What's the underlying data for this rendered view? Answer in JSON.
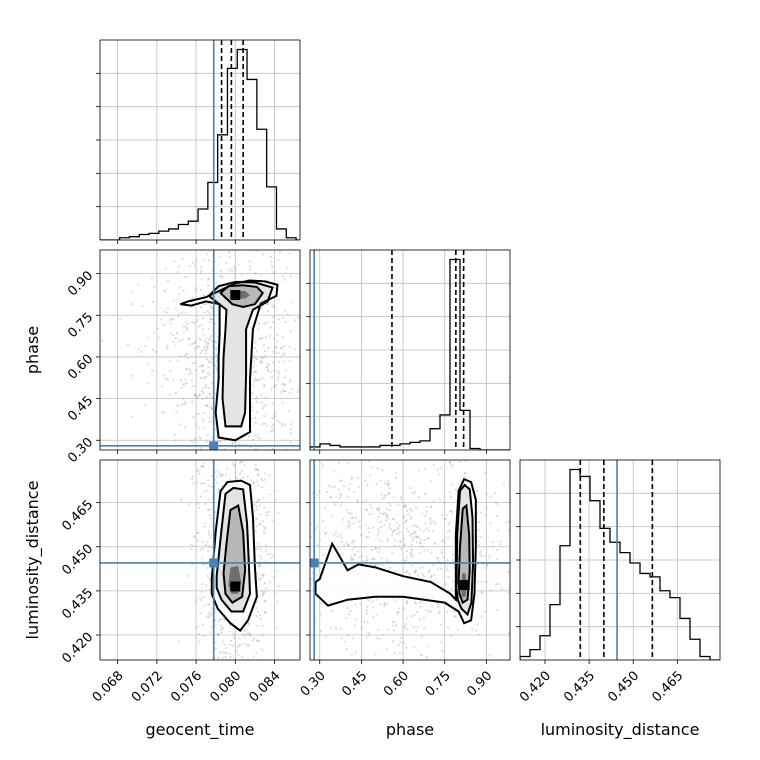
{
  "chart_data": {
    "type": "corner",
    "parameters": [
      "geocent_time",
      "phase",
      "luminosity_distance"
    ],
    "grid": true,
    "truths": {
      "geocent_time": 0.0778,
      "phase": 0.28,
      "luminosity_distance": 0.4445
    },
    "colors": {
      "truth": "#4682b4",
      "hist": "#000000",
      "contour": "#000000",
      "grid": "#bfbfbf",
      "points": "#9a9a9a"
    },
    "axes": {
      "geocent_time": {
        "label": "geocent_time",
        "range": [
          0.0662,
          0.0866
        ],
        "ticks": [
          0.068,
          0.072,
          0.076,
          0.08,
          0.084
        ],
        "tick_labels": [
          "0.068",
          "0.072",
          "0.076",
          "0.080",
          "0.084"
        ]
      },
      "phase": {
        "label": "phase",
        "range": [
          0.265,
          0.985
        ],
        "ticks": [
          0.3,
          0.45,
          0.6,
          0.75,
          0.9
        ],
        "tick_labels": [
          "0.30",
          "0.45",
          "0.60",
          "0.75",
          "0.90"
        ]
      },
      "luminosity_distance": {
        "label": "luminosity_distance",
        "range": [
          0.4115,
          0.4795
        ],
        "ticks": [
          0.42,
          0.435,
          0.45,
          0.465
        ],
        "tick_labels": [
          "0.420",
          "0.435",
          "0.450",
          "0.465"
        ]
      }
    },
    "marginals": {
      "geocent_time": {
        "bin_edges": [
          0.0662,
          0.0672,
          0.0682,
          0.0692,
          0.0702,
          0.0712,
          0.0722,
          0.0732,
          0.0742,
          0.0752,
          0.0762,
          0.0772,
          0.0782,
          0.0792,
          0.0802,
          0.0812,
          0.0822,
          0.0832,
          0.0842,
          0.0852,
          0.0862,
          0.0872
        ],
        "counts": [
          0,
          0,
          2,
          3,
          5,
          6,
          8,
          10,
          14,
          17,
          28,
          52,
          95,
          155,
          172,
          145,
          100,
          48,
          10,
          2,
          0
        ],
        "quantiles": [
          0.0786,
          0.0796,
          0.0808
        ]
      },
      "phase": {
        "bin_edges": [
          0.265,
          0.301,
          0.337,
          0.373,
          0.409,
          0.445,
          0.481,
          0.517,
          0.553,
          0.589,
          0.625,
          0.661,
          0.697,
          0.733,
          0.769,
          0.805,
          0.841,
          0.877,
          0.913,
          0.949,
          0.985
        ],
        "counts": [
          2,
          4,
          3,
          2,
          2,
          2,
          2,
          3,
          3,
          4,
          5,
          6,
          14,
          23,
          125,
          26,
          1,
          0,
          0,
          0
        ],
        "quantiles": [
          0.56,
          0.79,
          0.818
        ]
      },
      "luminosity_distance": {
        "bin_edges": [
          0.4115,
          0.4149,
          0.4183,
          0.4217,
          0.4251,
          0.4285,
          0.4319,
          0.4353,
          0.4387,
          0.4421,
          0.4455,
          0.4489,
          0.4523,
          0.4557,
          0.4591,
          0.4625,
          0.4659,
          0.4693,
          0.4727,
          0.4761,
          0.4795
        ],
        "counts": [
          1,
          3,
          7,
          16,
          33,
          55,
          53,
          46,
          38,
          34,
          31,
          28,
          25,
          24,
          20,
          18,
          12,
          6,
          1,
          0
        ],
        "quantiles": [
          0.432,
          0.44,
          0.4565
        ]
      }
    },
    "contours": {
      "phase_vs_geocent_time": [
        [
          [
            0.0744,
            0.79
          ],
          [
            0.0752,
            0.8
          ],
          [
            0.077,
            0.815
          ],
          [
            0.0785,
            0.84
          ],
          [
            0.08,
            0.865
          ],
          [
            0.0815,
            0.875
          ],
          [
            0.083,
            0.872
          ],
          [
            0.0843,
            0.86
          ],
          [
            0.0842,
            0.82
          ],
          [
            0.0826,
            0.792
          ],
          [
            0.0818,
            0.7
          ],
          [
            0.0815,
            0.52
          ],
          [
            0.0815,
            0.33
          ],
          [
            0.08,
            0.3
          ],
          [
            0.0783,
            0.31
          ],
          [
            0.078,
            0.4
          ],
          [
            0.0783,
            0.52
          ],
          [
            0.0783,
            0.6
          ],
          [
            0.0784,
            0.68
          ],
          [
            0.0784,
            0.79
          ],
          [
            0.077,
            0.8
          ],
          [
            0.0755,
            0.785
          ],
          [
            0.0744,
            0.79
          ]
        ],
        [
          [
            0.0773,
            0.82
          ],
          [
            0.0783,
            0.855
          ],
          [
            0.08,
            0.87
          ],
          [
            0.082,
            0.868
          ],
          [
            0.0838,
            0.85
          ],
          [
            0.0833,
            0.8
          ],
          [
            0.0818,
            0.77
          ],
          [
            0.0811,
            0.7
          ],
          [
            0.0811,
            0.54
          ],
          [
            0.081,
            0.4
          ],
          [
            0.0806,
            0.35
          ],
          [
            0.079,
            0.35
          ],
          [
            0.0787,
            0.45
          ],
          [
            0.0788,
            0.6
          ],
          [
            0.079,
            0.7
          ],
          [
            0.0791,
            0.77
          ],
          [
            0.078,
            0.8
          ],
          [
            0.0773,
            0.82
          ]
        ],
        [
          [
            0.0785,
            0.83
          ],
          [
            0.0793,
            0.855
          ],
          [
            0.0808,
            0.858
          ],
          [
            0.0822,
            0.852
          ],
          [
            0.0828,
            0.83
          ],
          [
            0.082,
            0.79
          ],
          [
            0.0808,
            0.78
          ],
          [
            0.0797,
            0.79
          ],
          [
            0.0785,
            0.83
          ]
        ],
        [
          [
            0.0795,
            0.82
          ],
          [
            0.08,
            0.836
          ],
          [
            0.081,
            0.838
          ],
          [
            0.0815,
            0.822
          ],
          [
            0.081,
            0.81
          ],
          [
            0.08,
            0.81
          ],
          [
            0.0795,
            0.82
          ]
        ]
      ],
      "luminosity_distance_vs_geocent_time": [
        [
          [
            0.0776,
            0.439
          ],
          [
            0.078,
            0.455
          ],
          [
            0.0785,
            0.469
          ],
          [
            0.0792,
            0.472
          ],
          [
            0.0806,
            0.4725
          ],
          [
            0.0815,
            0.471
          ],
          [
            0.0818,
            0.46
          ],
          [
            0.082,
            0.443
          ],
          [
            0.0822,
            0.433
          ],
          [
            0.0813,
            0.425
          ],
          [
            0.0805,
            0.4215
          ],
          [
            0.0795,
            0.424
          ],
          [
            0.0782,
            0.429
          ],
          [
            0.0776,
            0.434
          ],
          [
            0.0776,
            0.439
          ]
        ],
        [
          [
            0.0781,
            0.44
          ],
          [
            0.0786,
            0.456
          ],
          [
            0.079,
            0.468
          ],
          [
            0.0798,
            0.47
          ],
          [
            0.0808,
            0.4695
          ],
          [
            0.0812,
            0.458
          ],
          [
            0.0814,
            0.443
          ],
          [
            0.0815,
            0.434
          ],
          [
            0.0808,
            0.428
          ],
          [
            0.0796,
            0.428
          ],
          [
            0.0786,
            0.432
          ],
          [
            0.0781,
            0.436
          ],
          [
            0.0781,
            0.44
          ]
        ],
        [
          [
            0.0788,
            0.441
          ],
          [
            0.0791,
            0.451
          ],
          [
            0.0795,
            0.4625
          ],
          [
            0.0803,
            0.464
          ],
          [
            0.0808,
            0.455
          ],
          [
            0.081,
            0.442
          ],
          [
            0.0807,
            0.433
          ],
          [
            0.0797,
            0.431
          ],
          [
            0.079,
            0.434
          ],
          [
            0.0788,
            0.441
          ]
        ],
        [
          [
            0.0793,
            0.437
          ],
          [
            0.0795,
            0.443
          ],
          [
            0.0803,
            0.4435
          ],
          [
            0.0806,
            0.438
          ],
          [
            0.0803,
            0.434
          ],
          [
            0.0796,
            0.434
          ],
          [
            0.0793,
            0.437
          ]
        ]
      ],
      "luminosity_distance_vs_phase": [
        [
          [
            0.285,
            0.438
          ],
          [
            0.3,
            0.439
          ],
          [
            0.345,
            0.451
          ],
          [
            0.37,
            0.447
          ],
          [
            0.4,
            0.442
          ],
          [
            0.44,
            0.444
          ],
          [
            0.5,
            0.443
          ],
          [
            0.6,
            0.44
          ],
          [
            0.7,
            0.438
          ],
          [
            0.77,
            0.434
          ],
          [
            0.79,
            0.432
          ],
          [
            0.79,
            0.435
          ],
          [
            0.79,
            0.454
          ],
          [
            0.8,
            0.469
          ],
          [
            0.82,
            0.473
          ],
          [
            0.845,
            0.472
          ],
          [
            0.862,
            0.466
          ],
          [
            0.862,
            0.45
          ],
          [
            0.857,
            0.434
          ],
          [
            0.845,
            0.425
          ],
          [
            0.82,
            0.424
          ],
          [
            0.8,
            0.428
          ],
          [
            0.75,
            0.431
          ],
          [
            0.6,
            0.433
          ],
          [
            0.5,
            0.433
          ],
          [
            0.4,
            0.432
          ],
          [
            0.33,
            0.43
          ],
          [
            0.285,
            0.434
          ],
          [
            0.285,
            0.438
          ]
        ],
        [
          [
            0.792,
            0.436
          ],
          [
            0.795,
            0.454
          ],
          [
            0.805,
            0.469
          ],
          [
            0.822,
            0.471
          ],
          [
            0.84,
            0.4695
          ],
          [
            0.85,
            0.46
          ],
          [
            0.852,
            0.444
          ],
          [
            0.846,
            0.431
          ],
          [
            0.832,
            0.427
          ],
          [
            0.81,
            0.429
          ],
          [
            0.797,
            0.432
          ],
          [
            0.792,
            0.436
          ]
        ],
        [
          [
            0.8,
            0.438
          ],
          [
            0.805,
            0.45
          ],
          [
            0.815,
            0.463
          ],
          [
            0.828,
            0.464
          ],
          [
            0.838,
            0.454
          ],
          [
            0.84,
            0.442
          ],
          [
            0.832,
            0.432
          ],
          [
            0.815,
            0.431
          ],
          [
            0.803,
            0.434
          ],
          [
            0.8,
            0.438
          ]
        ],
        [
          [
            0.808,
            0.436
          ],
          [
            0.813,
            0.441
          ],
          [
            0.825,
            0.441
          ],
          [
            0.83,
            0.437
          ],
          [
            0.825,
            0.433
          ],
          [
            0.812,
            0.433
          ],
          [
            0.808,
            0.436
          ]
        ]
      ]
    },
    "density_peaks": {
      "phase_vs_geocent_time": [
        0.08,
        0.823
      ],
      "luminosity_distance_vs_geocent_time": [
        0.08,
        0.4365
      ],
      "luminosity_distance_vs_phase": [
        0.822,
        0.437
      ]
    }
  }
}
